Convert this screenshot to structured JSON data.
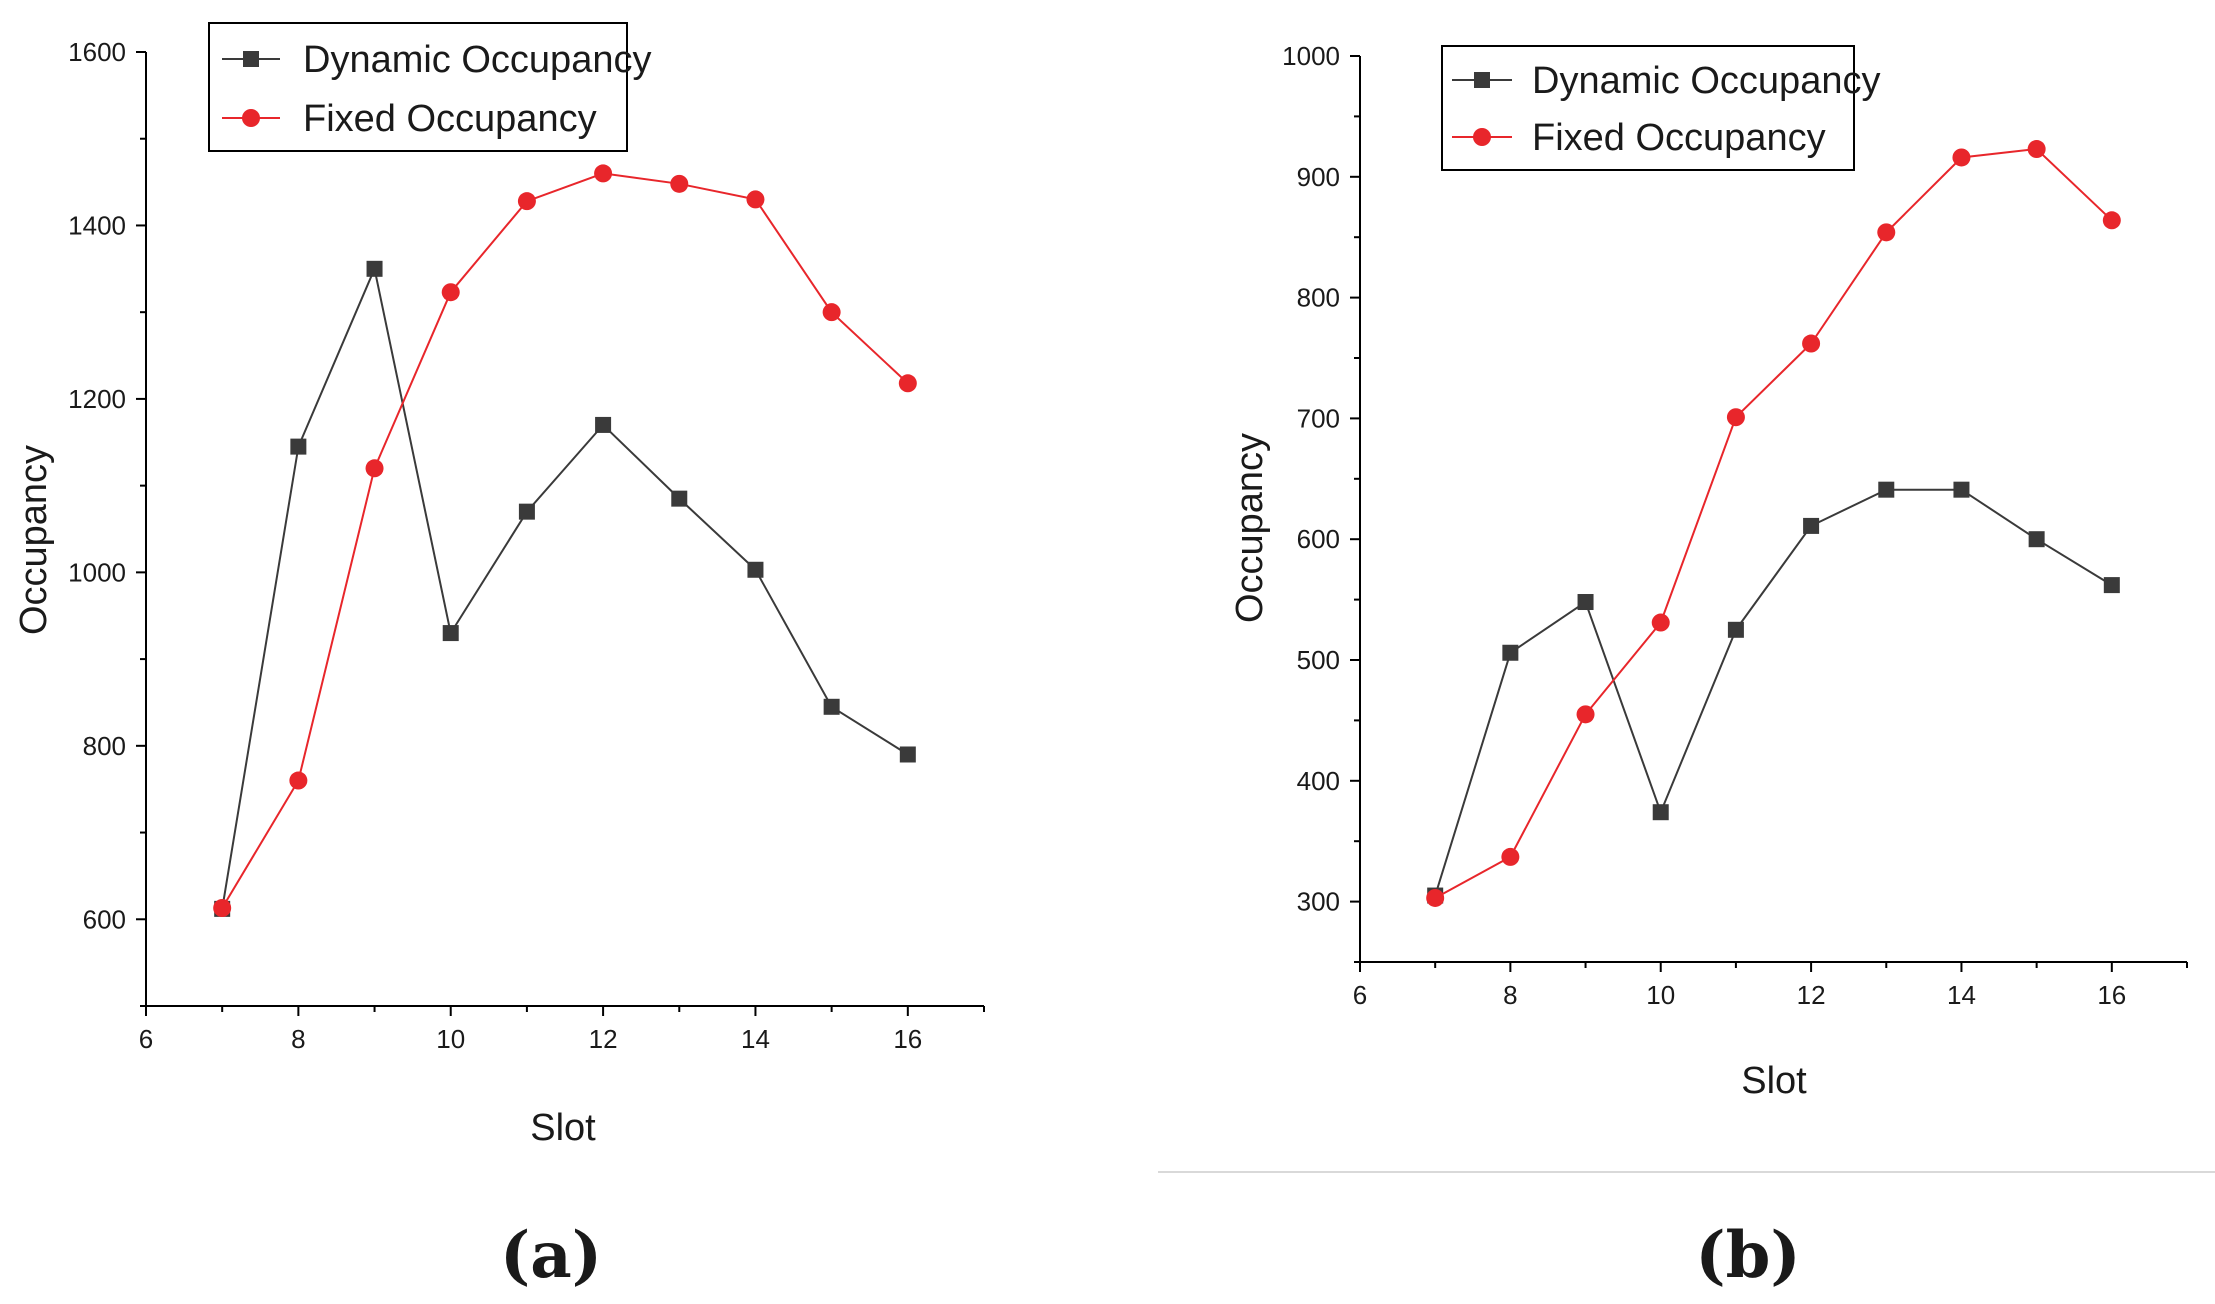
{
  "figure": {
    "panel_labels": [
      "(a)",
      "(b)"
    ],
    "colors": {
      "dynamic": "#3a3a3a",
      "fixed": "#e8262b",
      "axis": "#000000"
    }
  },
  "chart_data": [
    {
      "type": "line",
      "panel": "(a)",
      "title": "",
      "xlabel": "Slot",
      "ylabel": "Occupancy",
      "xlim": [
        6,
        17
      ],
      "ylim": [
        500,
        1600
      ],
      "xticks": [
        6,
        8,
        10,
        12,
        14,
        16
      ],
      "yticks": [
        600,
        800,
        1000,
        1200,
        1400,
        1600
      ],
      "x": [
        7,
        8,
        9,
        10,
        11,
        12,
        13,
        14,
        15,
        16
      ],
      "legend_position": "top-left",
      "series": [
        {
          "name": "Dynamic Occupancy",
          "marker": "square",
          "color": "#3a3a3a",
          "values": [
            612,
            1145,
            1350,
            930,
            1070,
            1170,
            1085,
            1003,
            845,
            790
          ]
        },
        {
          "name": "Fixed Occupancy",
          "marker": "circle",
          "color": "#e8262b",
          "values": [
            613,
            760,
            1120,
            1323,
            1428,
            1460,
            1448,
            1430,
            1300,
            1218
          ]
        }
      ]
    },
    {
      "type": "line",
      "panel": "(b)",
      "title": "",
      "xlabel": "Slot",
      "ylabel": "Occupancy",
      "xlim": [
        6,
        17
      ],
      "ylim": [
        250,
        1000
      ],
      "xticks": [
        6,
        8,
        10,
        12,
        14,
        16
      ],
      "yticks": [
        300,
        400,
        500,
        600,
        700,
        800,
        900,
        1000
      ],
      "x": [
        7,
        8,
        9,
        10,
        11,
        12,
        13,
        14,
        15,
        16
      ],
      "legend_position": "top-left",
      "series": [
        {
          "name": "Dynamic Occupancy",
          "marker": "square",
          "color": "#3a3a3a",
          "values": [
            305,
            506,
            548,
            374,
            525,
            611,
            641,
            641,
            600,
            562
          ]
        },
        {
          "name": "Fixed Occupancy",
          "marker": "circle",
          "color": "#e8262b",
          "values": [
            303,
            337,
            455,
            531,
            701,
            762,
            854,
            916,
            923,
            864
          ]
        }
      ]
    }
  ]
}
